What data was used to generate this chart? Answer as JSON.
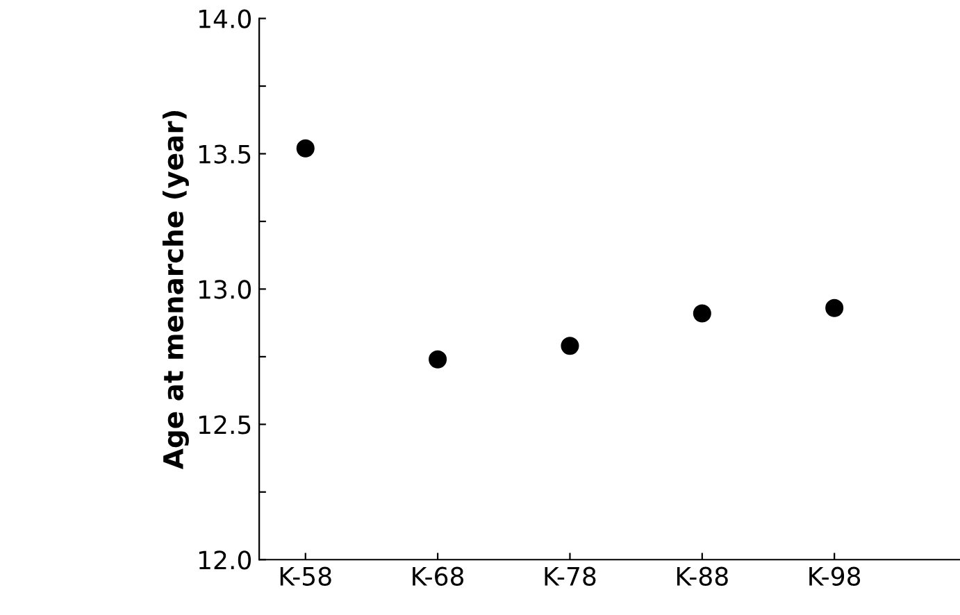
{
  "chart_data": {
    "type": "scatter",
    "ylabel": "Age at menarche (year)",
    "categories": [
      "K-58",
      "K-68",
      "K-78",
      "K-88",
      "K-98"
    ],
    "values": [
      13.52,
      12.74,
      12.79,
      12.91,
      12.93
    ],
    "color": "#000000",
    "marker": "circle",
    "grid": false,
    "legend": false,
    "ylim": [
      12.0,
      14.0
    ],
    "yticks": [
      {
        "value": 12,
        "label": "12.0"
      },
      {
        "value": 12.25,
        "label": null
      },
      12.5,
      {
        "value": 12.75,
        "label": null
      },
      {
        "value": 13,
        "label": "13.0"
      },
      {
        "value": 13.25,
        "label": null
      },
      13.5,
      {
        "value": 13.75,
        "label": null
      },
      {
        "value": 14,
        "label": "14.0"
      }
    ]
  }
}
